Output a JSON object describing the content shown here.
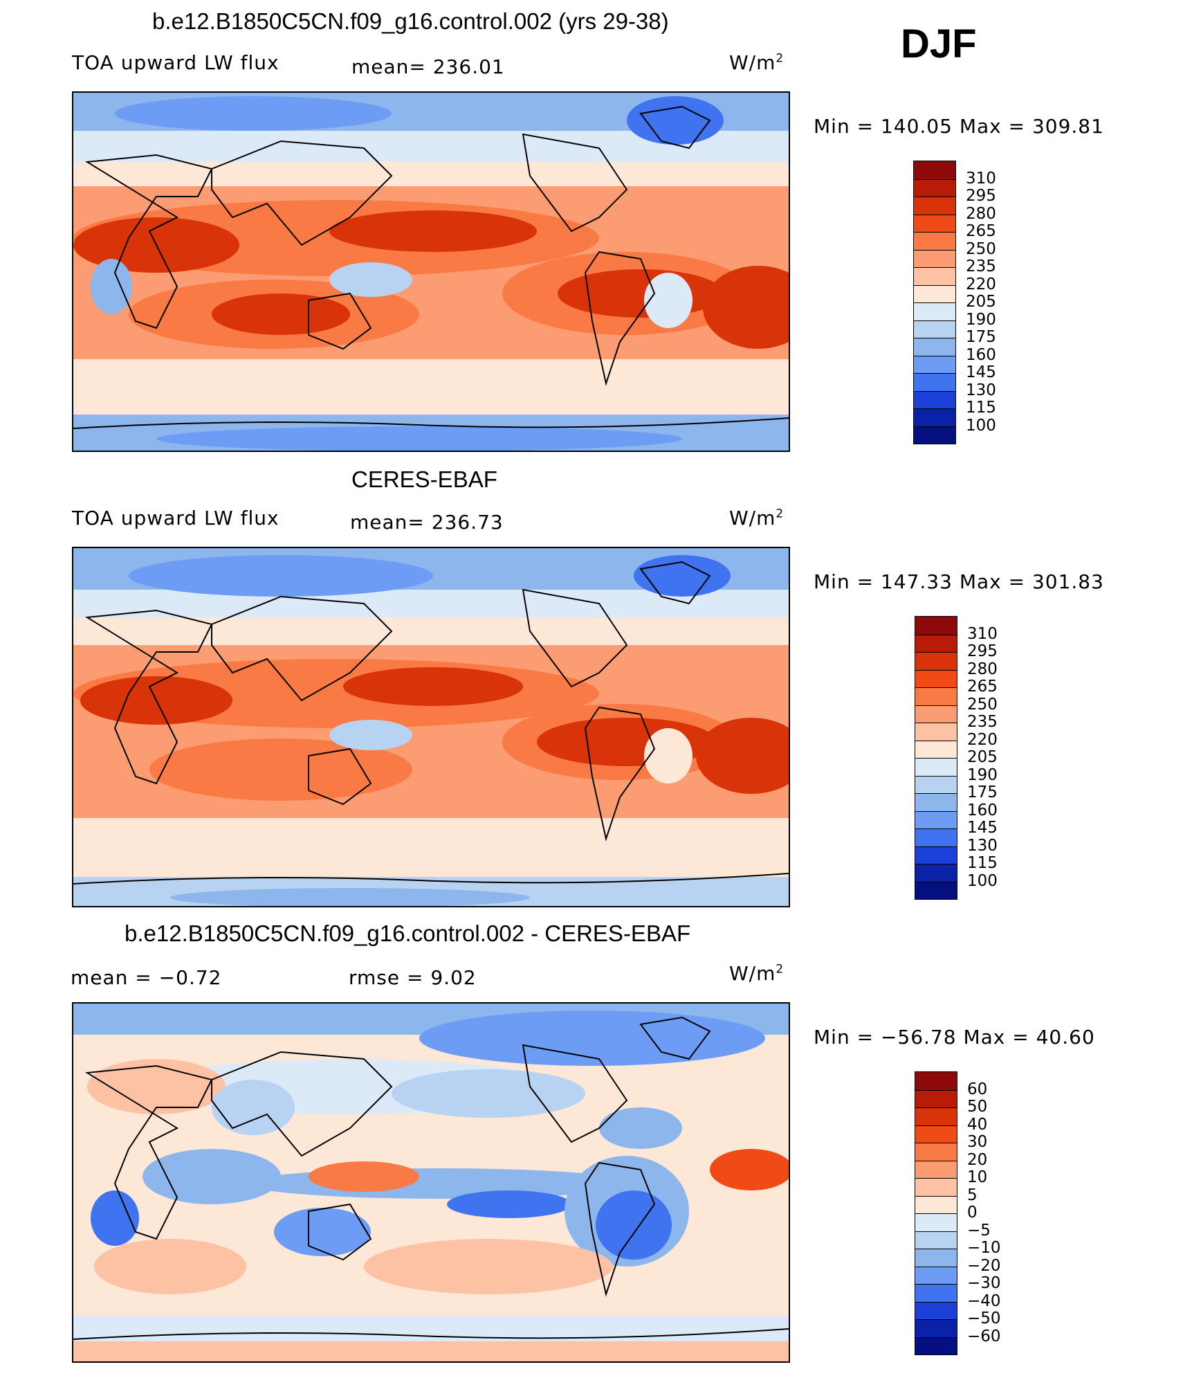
{
  "season": "DJF",
  "panels": [
    {
      "title": "b.e12.B1850C5CN.f09_g16.control.002 (yrs 29-38)",
      "left_label": "TOA upward LW flux",
      "center_label": "mean= 236.01",
      "units": "W/m",
      "units_sup": "2",
      "minmax": "Min = 140.05 Max = 309.81",
      "colorbar_ticks": [
        "310",
        "295",
        "280",
        "265",
        "250",
        "235",
        "220",
        "205",
        "190",
        "175",
        "160",
        "145",
        "130",
        "115",
        "100"
      ],
      "colorbar_colors": [
        "#8e0a0a",
        "#b81c08",
        "#d9330a",
        "#f04a16",
        "#fa7a45",
        "#fc9c72",
        "#fdc2a3",
        "#fde7d6",
        "#dce9f7",
        "#b8d3f2",
        "#8db6ec",
        "#6c9cf3",
        "#3f73f0",
        "#1a40d8",
        "#0a22a8",
        "#050f80"
      ]
    },
    {
      "title": "CERES-EBAF",
      "left_label": "TOA upward LW flux",
      "center_label": "mean= 236.73",
      "units": "W/m",
      "units_sup": "2",
      "minmax": "Min = 147.33 Max = 301.83",
      "colorbar_ticks": [
        "310",
        "295",
        "280",
        "265",
        "250",
        "235",
        "220",
        "205",
        "190",
        "175",
        "160",
        "145",
        "130",
        "115",
        "100"
      ],
      "colorbar_colors": [
        "#8e0a0a",
        "#b81c08",
        "#d9330a",
        "#f04a16",
        "#fa7a45",
        "#fc9c72",
        "#fdc2a3",
        "#fde7d6",
        "#dce9f7",
        "#b8d3f2",
        "#8db6ec",
        "#6c9cf3",
        "#3f73f0",
        "#1a40d8",
        "#0a22a8",
        "#050f80"
      ]
    },
    {
      "title": "b.e12.B1850C5CN.f09_g16.control.002 - CERES-EBAF",
      "left_label": "mean =   −0.72",
      "center_label": "rmse =    9.02",
      "units": "W/m",
      "units_sup": "2",
      "minmax": "Min = −56.78 Max =   40.60",
      "colorbar_ticks": [
        "60",
        "50",
        "40",
        "30",
        "20",
        "10",
        "5",
        "0",
        "−5",
        "−10",
        "−20",
        "−30",
        "−40",
        "−50",
        "−60"
      ],
      "colorbar_colors": [
        "#8e0a0a",
        "#b81c08",
        "#d9330a",
        "#f04a16",
        "#fa7a45",
        "#fc9c72",
        "#fdc2a3",
        "#fde7d6",
        "#dce9f7",
        "#b8d3f2",
        "#8db6ec",
        "#6c9cf3",
        "#3f73f0",
        "#1a40d8",
        "#0a22a8",
        "#050f80"
      ]
    }
  ]
}
